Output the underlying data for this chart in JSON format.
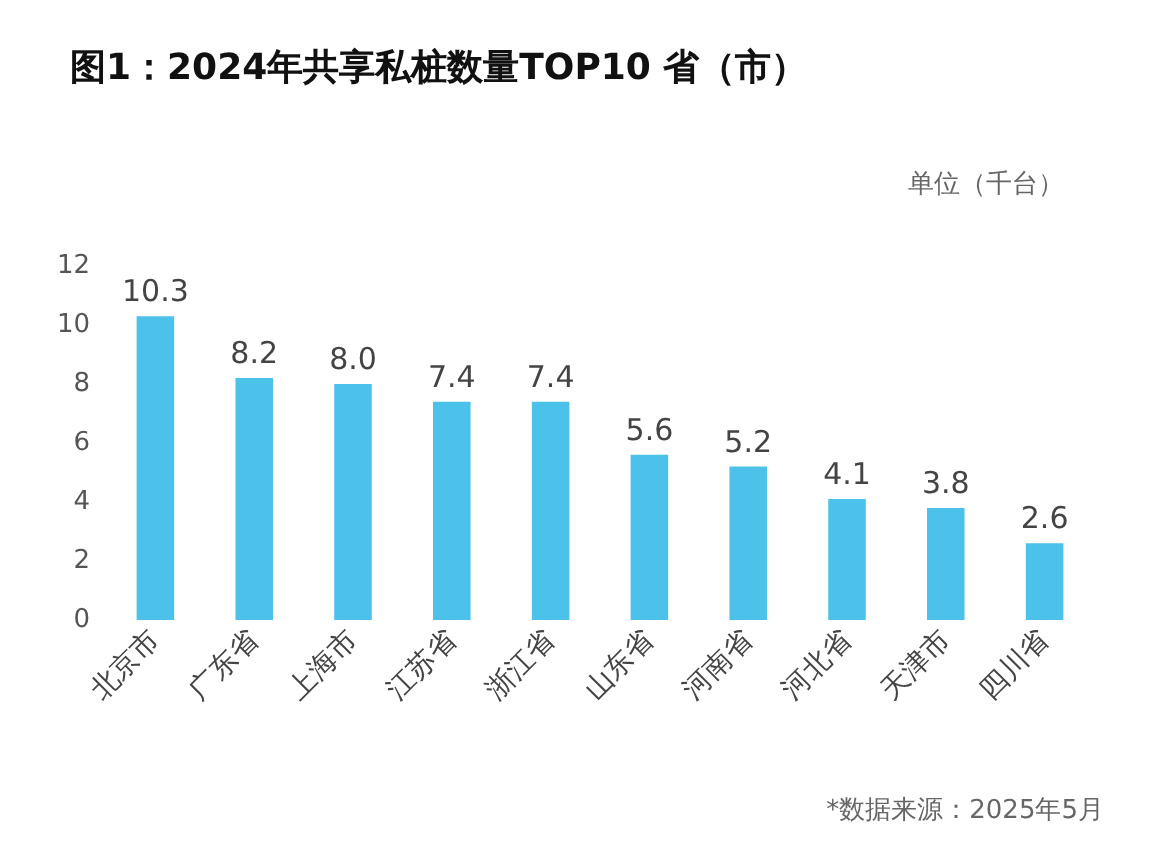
{
  "chart_data": {
    "type": "bar",
    "title": "图1：2024年共享私桩数量TOP10 省（市）",
    "categories": [
      "北京市",
      "广东省",
      "上海市",
      "江苏省",
      "浙江省",
      "山东省",
      "河南省",
      "河北省",
      "天津市",
      "四川省"
    ],
    "values": [
      10.3,
      8.2,
      8.0,
      7.4,
      7.4,
      5.6,
      5.2,
      4.1,
      3.8,
      2.6
    ],
    "value_labels": [
      "10.3",
      "8.2",
      "8.0",
      "7.4",
      "7.4",
      "5.6",
      "5.2",
      "4.1",
      "3.8",
      "2.6"
    ],
    "color": "#4cc1e9",
    "grid": false,
    "ylim": [
      0,
      12
    ],
    "yticks": [
      0,
      2,
      4,
      6,
      8,
      10,
      12
    ],
    "annotations": [
      "单位（千台）",
      "*数据来源：2025年5月"
    ]
  }
}
